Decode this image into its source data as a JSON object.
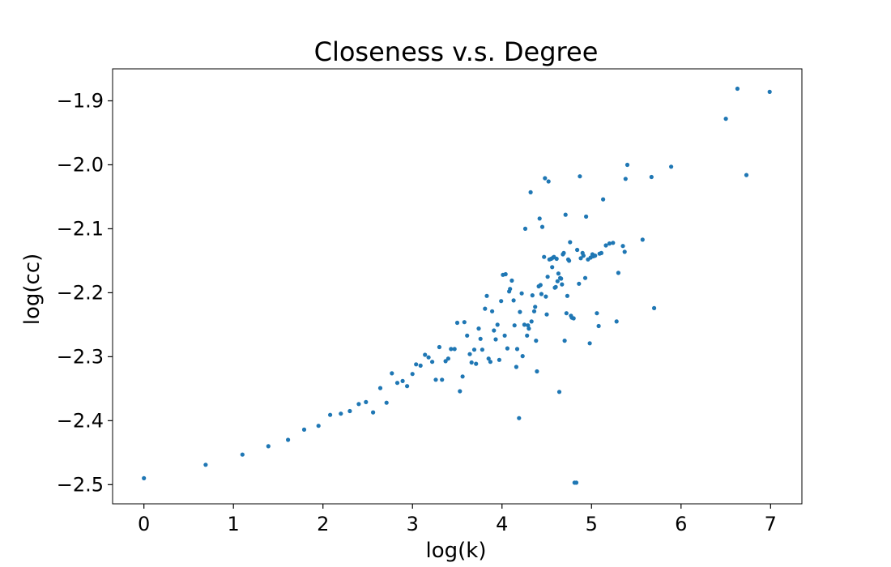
{
  "chart_data": {
    "type": "scatter",
    "title": "Closeness v.s. Degree",
    "xlabel": "log(k)",
    "ylabel": "log(cc)",
    "xlim": [
      -0.35,
      7.35
    ],
    "ylim": [
      -2.53,
      -1.85
    ],
    "xticks": [
      0,
      1,
      2,
      3,
      4,
      5,
      6,
      7
    ],
    "xtick_labels": [
      "0",
      "1",
      "2",
      "3",
      "4",
      "5",
      "6",
      "7"
    ],
    "yticks": [
      -2.5,
      -2.4,
      -2.3,
      -2.2,
      -2.1,
      -2.0,
      -1.9
    ],
    "ytick_labels": [
      "−2.5",
      "−2.4",
      "−2.3",
      "−2.2",
      "−2.1",
      "−2.0",
      "−1.9"
    ],
    "grid": false,
    "color": "#1f77b4",
    "points": [
      [
        0.0,
        -2.49
      ],
      [
        0.69,
        -2.469
      ],
      [
        1.1,
        -2.453
      ],
      [
        1.39,
        -2.44
      ],
      [
        1.61,
        -2.43
      ],
      [
        1.79,
        -2.414
      ],
      [
        1.95,
        -2.408
      ],
      [
        2.08,
        -2.391
      ],
      [
        2.2,
        -2.389
      ],
      [
        2.3,
        -2.385
      ],
      [
        2.4,
        -2.374
      ],
      [
        2.48,
        -2.371
      ],
      [
        2.56,
        -2.387
      ],
      [
        2.64,
        -2.349
      ],
      [
        2.71,
        -2.372
      ],
      [
        2.77,
        -2.326
      ],
      [
        2.83,
        -2.341
      ],
      [
        2.89,
        -2.338
      ],
      [
        2.94,
        -2.346
      ],
      [
        3.0,
        -2.327
      ],
      [
        3.04,
        -2.312
      ],
      [
        3.09,
        -2.314
      ],
      [
        3.14,
        -2.297
      ],
      [
        3.18,
        -2.301
      ],
      [
        3.22,
        -2.308
      ],
      [
        3.26,
        -2.336
      ],
      [
        3.3,
        -2.285
      ],
      [
        3.33,
        -2.336
      ],
      [
        3.37,
        -2.307
      ],
      [
        3.4,
        -2.303
      ],
      [
        3.43,
        -2.288
      ],
      [
        3.47,
        -2.288
      ],
      [
        3.5,
        -2.247
      ],
      [
        3.53,
        -2.354
      ],
      [
        3.56,
        -2.331
      ],
      [
        3.58,
        -2.246
      ],
      [
        3.61,
        -2.267
      ],
      [
        3.64,
        -2.296
      ],
      [
        3.66,
        -2.309
      ],
      [
        3.69,
        -2.289
      ],
      [
        3.71,
        -2.311
      ],
      [
        3.74,
        -2.256
      ],
      [
        3.76,
        -2.272
      ],
      [
        3.78,
        -2.289
      ],
      [
        3.81,
        -2.225
      ],
      [
        3.83,
        -2.205
      ],
      [
        3.85,
        -2.303
      ],
      [
        3.87,
        -2.308
      ],
      [
        3.89,
        -2.229
      ],
      [
        3.91,
        -2.259
      ],
      [
        3.93,
        -2.273
      ],
      [
        3.95,
        -2.25
      ],
      [
        3.97,
        -2.305
      ],
      [
        3.99,
        -2.213
      ],
      [
        4.01,
        -2.172
      ],
      [
        4.03,
        -2.267
      ],
      [
        4.04,
        -2.171
      ],
      [
        4.06,
        -2.287
      ],
      [
        4.08,
        -2.198
      ],
      [
        4.09,
        -2.194
      ],
      [
        4.11,
        -2.181
      ],
      [
        4.13,
        -2.212
      ],
      [
        4.14,
        -2.251
      ],
      [
        4.16,
        -2.316
      ],
      [
        4.17,
        -2.288
      ],
      [
        4.19,
        -2.396
      ],
      [
        4.2,
        -2.23
      ],
      [
        4.22,
        -2.201
      ],
      [
        4.23,
        -2.299
      ],
      [
        4.25,
        -2.25
      ],
      [
        4.26,
        -2.1
      ],
      [
        4.28,
        -2.267
      ],
      [
        4.29,
        -2.251
      ],
      [
        4.3,
        -2.256
      ],
      [
        4.32,
        -2.043
      ],
      [
        4.33,
        -2.245
      ],
      [
        4.34,
        -2.204
      ],
      [
        4.36,
        -2.229
      ],
      [
        4.37,
        -2.222
      ],
      [
        4.38,
        -2.275
      ],
      [
        4.39,
        -2.323
      ],
      [
        4.41,
        -2.19
      ],
      [
        4.42,
        -2.084
      ],
      [
        4.43,
        -2.188
      ],
      [
        4.44,
        -2.202
      ],
      [
        4.45,
        -2.097
      ],
      [
        4.47,
        -2.144
      ],
      [
        4.48,
        -2.021
      ],
      [
        4.49,
        -2.206
      ],
      [
        4.5,
        -2.234
      ],
      [
        4.51,
        -2.175
      ],
      [
        4.52,
        -2.026
      ],
      [
        4.53,
        -2.148
      ],
      [
        4.55,
        -2.147
      ],
      [
        4.56,
        -2.16
      ],
      [
        4.57,
        -2.145
      ],
      [
        4.58,
        -2.144
      ],
      [
        4.59,
        -2.192
      ],
      [
        4.6,
        -2.191
      ],
      [
        4.61,
        -2.147
      ],
      [
        4.62,
        -2.182
      ],
      [
        4.63,
        -2.17
      ],
      [
        4.64,
        -2.355
      ],
      [
        4.65,
        -2.177
      ],
      [
        4.66,
        -2.178
      ],
      [
        4.67,
        -2.187
      ],
      [
        4.68,
        -2.14
      ],
      [
        4.69,
        -2.138
      ],
      [
        4.7,
        -2.275
      ],
      [
        4.71,
        -2.078
      ],
      [
        4.72,
        -2.232
      ],
      [
        4.73,
        -2.205
      ],
      [
        4.74,
        -2.148
      ],
      [
        4.75,
        -2.15
      ],
      [
        4.76,
        -2.121
      ],
      [
        4.77,
        -2.236
      ],
      [
        4.78,
        -2.239
      ],
      [
        4.8,
        -2.24
      ],
      [
        4.81,
        -2.497
      ],
      [
        4.83,
        -2.497
      ],
      [
        4.84,
        -2.133
      ],
      [
        4.86,
        -2.186
      ],
      [
        4.87,
        -2.018
      ],
      [
        4.88,
        -2.146
      ],
      [
        4.9,
        -2.138
      ],
      [
        4.91,
        -2.142
      ],
      [
        4.93,
        -2.177
      ],
      [
        4.94,
        -2.081
      ],
      [
        4.96,
        -2.148
      ],
      [
        4.98,
        -2.279
      ],
      [
        4.99,
        -2.145
      ],
      [
        5.01,
        -2.14
      ],
      [
        5.02,
        -2.143
      ],
      [
        5.04,
        -2.142
      ],
      [
        5.06,
        -2.232
      ],
      [
        5.08,
        -2.252
      ],
      [
        5.09,
        -2.139
      ],
      [
        5.11,
        -2.138
      ],
      [
        5.13,
        -2.054
      ],
      [
        5.16,
        -2.126
      ],
      [
        5.2,
        -2.123
      ],
      [
        5.24,
        -2.122
      ],
      [
        5.28,
        -2.245
      ],
      [
        5.3,
        -2.169
      ],
      [
        5.35,
        -2.127
      ],
      [
        5.37,
        -2.136
      ],
      [
        5.38,
        -2.022
      ],
      [
        5.4,
        -2.0
      ],
      [
        5.57,
        -2.117
      ],
      [
        5.67,
        -2.019
      ],
      [
        5.7,
        -2.224
      ],
      [
        5.89,
        -2.003
      ],
      [
        6.5,
        -1.928
      ],
      [
        6.63,
        -1.881
      ],
      [
        6.73,
        -2.016
      ],
      [
        6.99,
        -1.886
      ]
    ]
  }
}
